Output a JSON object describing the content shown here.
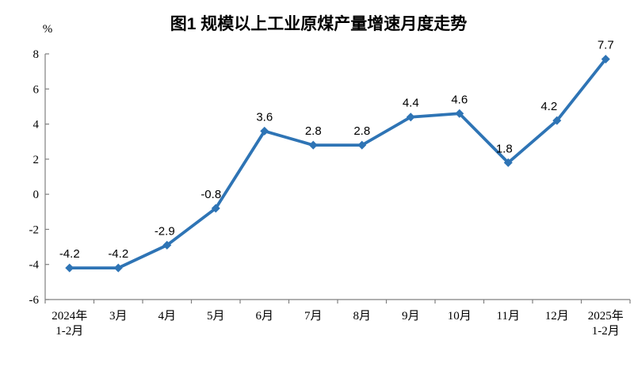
{
  "chart_data": {
    "type": "line",
    "title": "图1  规模以上工业原煤产量增速月度走势",
    "unit_label": "%",
    "categories": [
      [
        "2024年",
        "1-2月"
      ],
      [
        "3月"
      ],
      [
        "4月"
      ],
      [
        "5月"
      ],
      [
        "6月"
      ],
      [
        "7月"
      ],
      [
        "8月"
      ],
      [
        "9月"
      ],
      [
        "10月"
      ],
      [
        "11月"
      ],
      [
        "12月"
      ],
      [
        "2025年",
        "1-2月"
      ]
    ],
    "values": [
      -4.2,
      -4.2,
      -2.9,
      -0.8,
      3.6,
      2.8,
      2.8,
      4.4,
      4.6,
      1.8,
      4.2,
      7.7
    ],
    "data_labels": [
      "-4.2",
      "-4.2",
      "-2.9",
      "-0.8",
      "3.6",
      "2.8",
      "2.8",
      "4.4",
      "4.6",
      "1.8",
      "4.2",
      "7.7"
    ],
    "y_axis": {
      "min": -6,
      "max": 8,
      "step": 2,
      "tick_labels": [
        "-6",
        "-4",
        "-2",
        "0",
        "2",
        "4",
        "6",
        "8"
      ]
    },
    "grid": "off",
    "legend": "none",
    "marker": "diamond",
    "colors": {
      "series": "#2E74B5",
      "axis": "#808080",
      "text": "#000000",
      "background": "#FFFFFF"
    },
    "layout_hints": {
      "label_dx": [
        0,
        0,
        -3,
        -6,
        0,
        0,
        0,
        0,
        0,
        -5,
        -10,
        0
      ],
      "label_dy": -13
    }
  }
}
